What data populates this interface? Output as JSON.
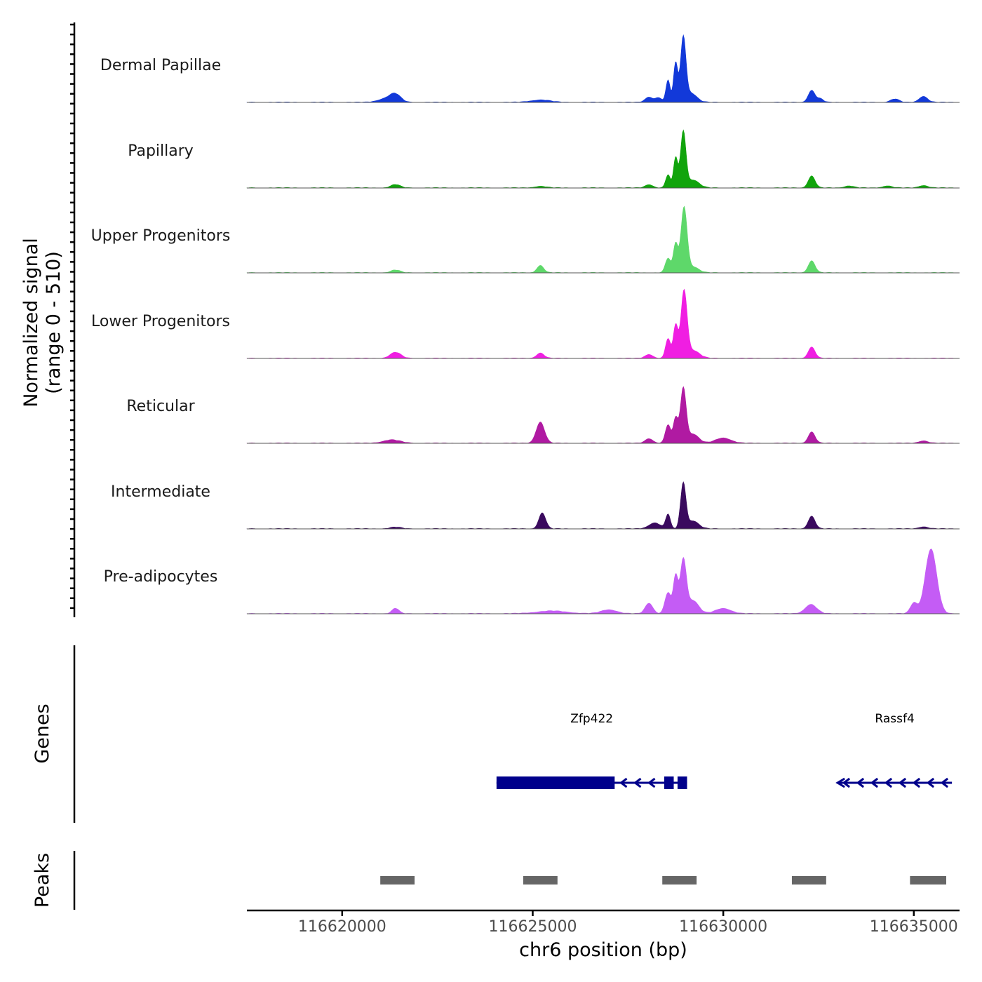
{
  "chart_data": {
    "type": "area",
    "title": "",
    "region": "chr6",
    "x_range": [
      116617500,
      116636200
    ],
    "ylabel_line1": "Normalized signal",
    "ylabel_line2": "(range 0 - 510)",
    "y_range": [
      0,
      510
    ],
    "xlabel": "chr6 position (bp)",
    "x_ticks": [
      116620000,
      116625000,
      116630000,
      116635000
    ],
    "x_tick_labels": [
      "116620000",
      "116625000",
      "116630000",
      "116635000"
    ],
    "colors": {
      "dermal_papillae": "#1239d9",
      "papillary": "#11a40c",
      "upper_progenitors": "#5ed86a",
      "lower_progenitors": "#f01ee2",
      "reticular": "#b01aa2",
      "intermediate": "#3a0a5e",
      "pre_adipocytes": "#c45cf5",
      "genes": "#00008b",
      "peaks": "#666666"
    },
    "tracks": [
      {
        "name": "Dermal Papillae",
        "color": "#1239d9",
        "peaks": [
          {
            "center": 116621400,
            "height": 55,
            "width": 140
          },
          {
            "center": 116621150,
            "height": 28,
            "width": 200
          },
          {
            "center": 116625200,
            "height": 18,
            "width": 250
          },
          {
            "center": 116628050,
            "height": 40,
            "width": 100
          },
          {
            "center": 116628300,
            "height": 35,
            "width": 80
          },
          {
            "center": 116628550,
            "height": 170,
            "width": 55
          },
          {
            "center": 116628750,
            "height": 300,
            "width": 55
          },
          {
            "center": 116628950,
            "height": 480,
            "width": 70
          },
          {
            "center": 116629150,
            "height": 70,
            "width": 150
          },
          {
            "center": 116632320,
            "height": 90,
            "width": 90
          },
          {
            "center": 116632550,
            "height": 25,
            "width": 80
          },
          {
            "center": 116634500,
            "height": 25,
            "width": 110
          },
          {
            "center": 116635250,
            "height": 45,
            "width": 110
          }
        ]
      },
      {
        "name": "Papillary",
        "color": "#11a40c",
        "peaks": [
          {
            "center": 116621400,
            "height": 25,
            "width": 120
          },
          {
            "center": 116625200,
            "height": 12,
            "width": 150
          },
          {
            "center": 116628050,
            "height": 25,
            "width": 100
          },
          {
            "center": 116628550,
            "height": 100,
            "width": 60
          },
          {
            "center": 116628750,
            "height": 230,
            "width": 55
          },
          {
            "center": 116628950,
            "height": 420,
            "width": 70
          },
          {
            "center": 116629200,
            "height": 60,
            "width": 160
          },
          {
            "center": 116632320,
            "height": 90,
            "width": 90
          },
          {
            "center": 116633300,
            "height": 15,
            "width": 120
          },
          {
            "center": 116634300,
            "height": 15,
            "width": 120
          },
          {
            "center": 116635250,
            "height": 18,
            "width": 120
          }
        ]
      },
      {
        "name": "Upper Progenitors",
        "color": "#5ed86a",
        "peaks": [
          {
            "center": 116621400,
            "height": 20,
            "width": 120
          },
          {
            "center": 116625200,
            "height": 55,
            "width": 90
          },
          {
            "center": 116628550,
            "height": 110,
            "width": 70
          },
          {
            "center": 116628750,
            "height": 220,
            "width": 60
          },
          {
            "center": 116628970,
            "height": 490,
            "width": 80
          },
          {
            "center": 116629200,
            "height": 45,
            "width": 150
          },
          {
            "center": 116632320,
            "height": 90,
            "width": 90
          }
        ]
      },
      {
        "name": "Lower Progenitors",
        "color": "#f01ee2",
        "peaks": [
          {
            "center": 116621400,
            "height": 45,
            "width": 140
          },
          {
            "center": 116625200,
            "height": 40,
            "width": 100
          },
          {
            "center": 116628050,
            "height": 30,
            "width": 100
          },
          {
            "center": 116628550,
            "height": 150,
            "width": 65
          },
          {
            "center": 116628750,
            "height": 250,
            "width": 60
          },
          {
            "center": 116628970,
            "height": 500,
            "width": 80
          },
          {
            "center": 116629200,
            "height": 60,
            "width": 170
          },
          {
            "center": 116632320,
            "height": 85,
            "width": 90
          }
        ]
      },
      {
        "name": "Reticular",
        "color": "#b01aa2",
        "peaks": [
          {
            "center": 116621300,
            "height": 25,
            "width": 220
          },
          {
            "center": 116625200,
            "height": 160,
            "width": 110
          },
          {
            "center": 116628050,
            "height": 35,
            "width": 100
          },
          {
            "center": 116628550,
            "height": 140,
            "width": 70
          },
          {
            "center": 116628750,
            "height": 190,
            "width": 60
          },
          {
            "center": 116628950,
            "height": 410,
            "width": 75
          },
          {
            "center": 116629200,
            "height": 70,
            "width": 150
          },
          {
            "center": 116630000,
            "height": 40,
            "width": 200
          },
          {
            "center": 116632320,
            "height": 85,
            "width": 90
          },
          {
            "center": 116635250,
            "height": 18,
            "width": 120
          }
        ]
      },
      {
        "name": "Intermediate",
        "color": "#3a0a5e",
        "peaks": [
          {
            "center": 116621400,
            "height": 12,
            "width": 140
          },
          {
            "center": 116625250,
            "height": 120,
            "width": 90
          },
          {
            "center": 116628200,
            "height": 45,
            "width": 150
          },
          {
            "center": 116628550,
            "height": 110,
            "width": 60
          },
          {
            "center": 116628950,
            "height": 340,
            "width": 70
          },
          {
            "center": 116629200,
            "height": 60,
            "width": 150
          },
          {
            "center": 116632320,
            "height": 95,
            "width": 90
          },
          {
            "center": 116635250,
            "height": 15,
            "width": 120
          }
        ]
      },
      {
        "name": "Pre-adipocytes",
        "color": "#c45cf5",
        "peaks": [
          {
            "center": 116621400,
            "height": 40,
            "width": 90
          },
          {
            "center": 116625500,
            "height": 20,
            "width": 400
          },
          {
            "center": 116627000,
            "height": 30,
            "width": 200
          },
          {
            "center": 116628050,
            "height": 80,
            "width": 100
          },
          {
            "center": 116628550,
            "height": 160,
            "width": 80
          },
          {
            "center": 116628750,
            "height": 280,
            "width": 60
          },
          {
            "center": 116628950,
            "height": 400,
            "width": 80
          },
          {
            "center": 116629200,
            "height": 100,
            "width": 150
          },
          {
            "center": 116630000,
            "height": 40,
            "width": 200
          },
          {
            "center": 116632300,
            "height": 70,
            "width": 150
          },
          {
            "center": 116635000,
            "height": 80,
            "width": 90
          },
          {
            "center": 116635450,
            "height": 490,
            "width": 150
          }
        ]
      }
    ],
    "genes": [
      {
        "name": "Zfp422",
        "start": 116624050,
        "end": 116629050,
        "strand": "-",
        "exons": [
          [
            116624050,
            116627150
          ],
          [
            116628450,
            116628700
          ],
          [
            116628800,
            116629050
          ]
        ]
      },
      {
        "name": "Rassf4",
        "start": 116633000,
        "end": 116636000,
        "strand": "-",
        "exons": []
      }
    ],
    "peak_regions": [
      [
        116621000,
        116621900
      ],
      [
        116624750,
        116625650
      ],
      [
        116628400,
        116629300
      ],
      [
        116631800,
        116632700
      ],
      [
        116634900,
        116635850
      ]
    ],
    "panel_labels": {
      "genes": "Genes",
      "peaks": "Peaks"
    }
  }
}
